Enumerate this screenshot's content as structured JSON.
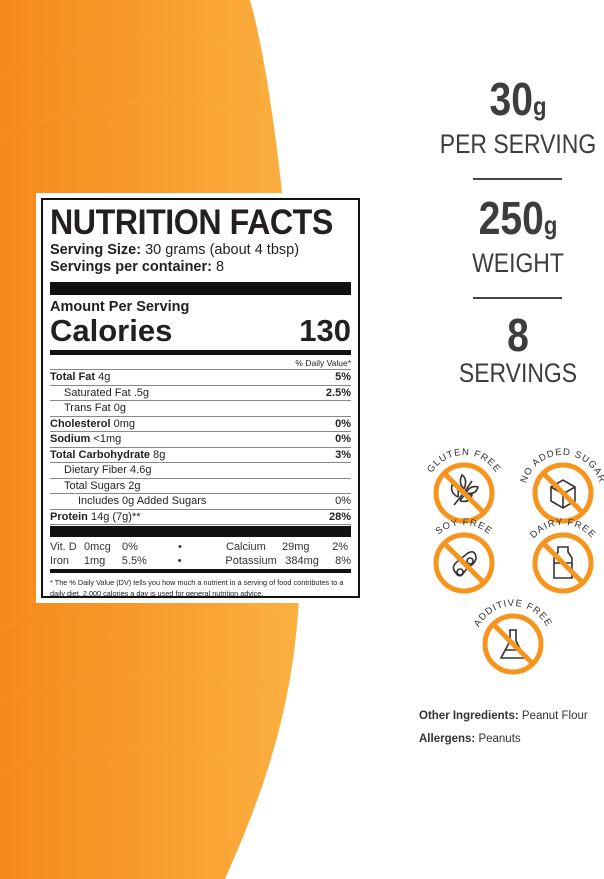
{
  "colors": {
    "orange": "#f7941d",
    "orange_light": "#fbb040",
    "text_dark": "#3d3d3d"
  },
  "label": {
    "title": "NUTRITION FACTS",
    "serving_size_label": "Serving Size:",
    "serving_size": "30 grams (about 4 tbsp)",
    "servings_label": "Servings per container:",
    "servings": "8",
    "amount_per_serving": "Amount Per Serving",
    "calories_label": "Calories",
    "calories": "130",
    "daily_value_header": "% Daily Value*",
    "rows": [
      {
        "name": "Total Fat",
        "amount": "4g",
        "dv": "5%",
        "bold": true,
        "indent": 0
      },
      {
        "name": "Saturated Fat",
        "amount": ".5g",
        "dv": "2.5%",
        "bold": false,
        "indent": 1
      },
      {
        "name": "Trans Fat",
        "amount": "0g",
        "dv": "",
        "bold": false,
        "indent": 1
      },
      {
        "name": "Cholesterol",
        "amount": "0mg",
        "dv": "0%",
        "bold": true,
        "indent": 0
      },
      {
        "name": "Sodium",
        "amount": "<1mg",
        "dv": "0%",
        "bold": true,
        "indent": 0
      },
      {
        "name": "Total Carbohydrate",
        "amount": "8g",
        "dv": "3%",
        "bold": true,
        "indent": 0
      },
      {
        "name": "Dietary Fiber",
        "amount": "4.6g",
        "dv": "",
        "bold": false,
        "indent": 1
      },
      {
        "name": "Total Sugars",
        "amount": "2g",
        "dv": "",
        "bold": false,
        "indent": 1
      },
      {
        "name": "Includes 0g Added Sugars",
        "amount": "",
        "dv": "0%",
        "bold": false,
        "indent": 2
      },
      {
        "name": "Protein",
        "amount": "14g (7g)**",
        "dv": "28%",
        "bold": true,
        "indent": 0
      }
    ],
    "vitamins": [
      [
        {
          "name": "Vit. D",
          "amount": "0mcg",
          "dv": "0%"
        },
        {
          "name": "Calcium",
          "amount": "29mg",
          "dv": "2%"
        }
      ],
      [
        {
          "name": "Iron",
          "amount": "1mg",
          "dv": "5.5%"
        },
        {
          "name": "Potassium",
          "amount": "384mg",
          "dv": "8%"
        }
      ]
    ],
    "bullet": "•",
    "footnote": "* The % Daily Value (DV) tells you how much a nutrient in a serving of food contributes to a daily diet. 2,000 calories a day is used for general nutrition advice."
  },
  "stats": [
    {
      "value": "30",
      "unit_small": "g",
      "label": "PER SERVING"
    },
    {
      "value": "250",
      "unit_small": "g",
      "label": "WEIGHT"
    },
    {
      "value": "8",
      "unit_small": "",
      "label": "SERVINGS"
    }
  ],
  "badges": [
    {
      "label": "GLUTEN FREE",
      "icon": "wheat-icon"
    },
    {
      "label": "NO ADDED SUGAR",
      "icon": "sugar-cube-icon"
    },
    {
      "label": "SOY FREE",
      "icon": "soybean-icon"
    },
    {
      "label": "DAIRY FREE",
      "icon": "milk-bottle-icon"
    },
    {
      "label": "ADDITIVE FREE",
      "icon": "flask-icon"
    }
  ],
  "ingredients": {
    "label": "Other Ingredients:",
    "value": "Peanut Flour"
  },
  "allergens": {
    "label": "Allergens:",
    "value": "Peanuts"
  }
}
